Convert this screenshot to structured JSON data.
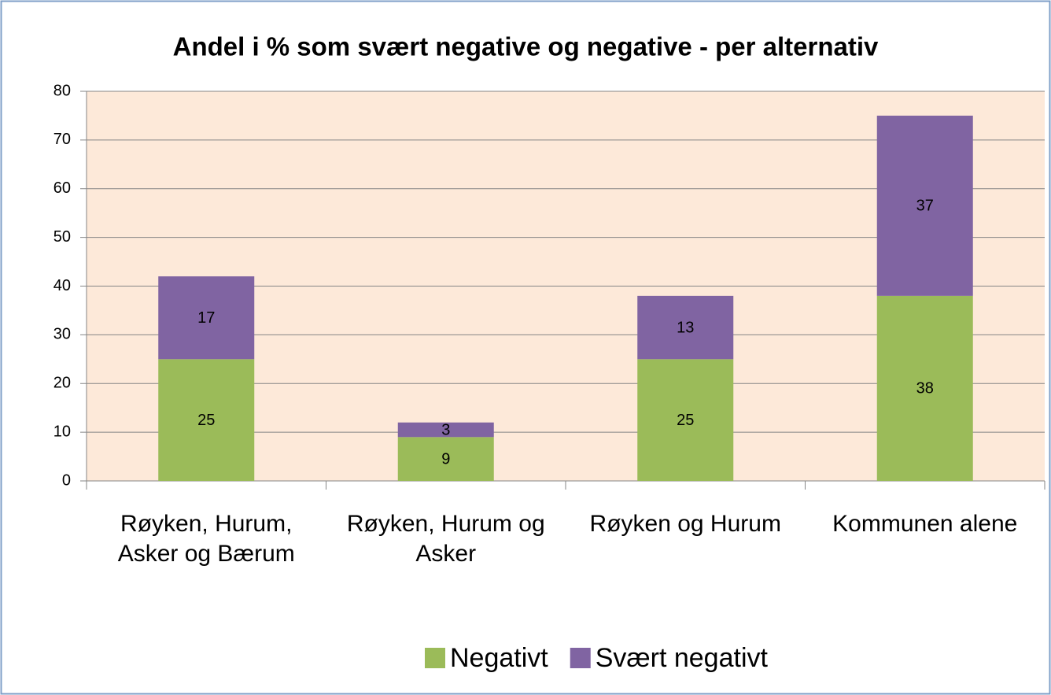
{
  "chart_data": {
    "type": "stacked_bar",
    "title": "Andel i % som svært negative og negative - per alternativ",
    "categories": [
      "Røyken, Hurum, Asker og Bærum",
      "Røyken, Hurum og Asker",
      "Røyken og Hurum",
      "Kommunen alene"
    ],
    "series": [
      {
        "name": "Negativt",
        "color": "#9bbb59",
        "values": [
          25,
          9,
          25,
          38
        ]
      },
      {
        "name": "Svært negativt",
        "color": "#8064a2",
        "values": [
          17,
          3,
          13,
          37
        ]
      }
    ],
    "ylim": [
      0,
      80
    ],
    "yticks": [
      0,
      10,
      20,
      30,
      40,
      50,
      60,
      70,
      80
    ],
    "grid": true,
    "legend": "bottom",
    "plot_background": "#fde9d9"
  }
}
